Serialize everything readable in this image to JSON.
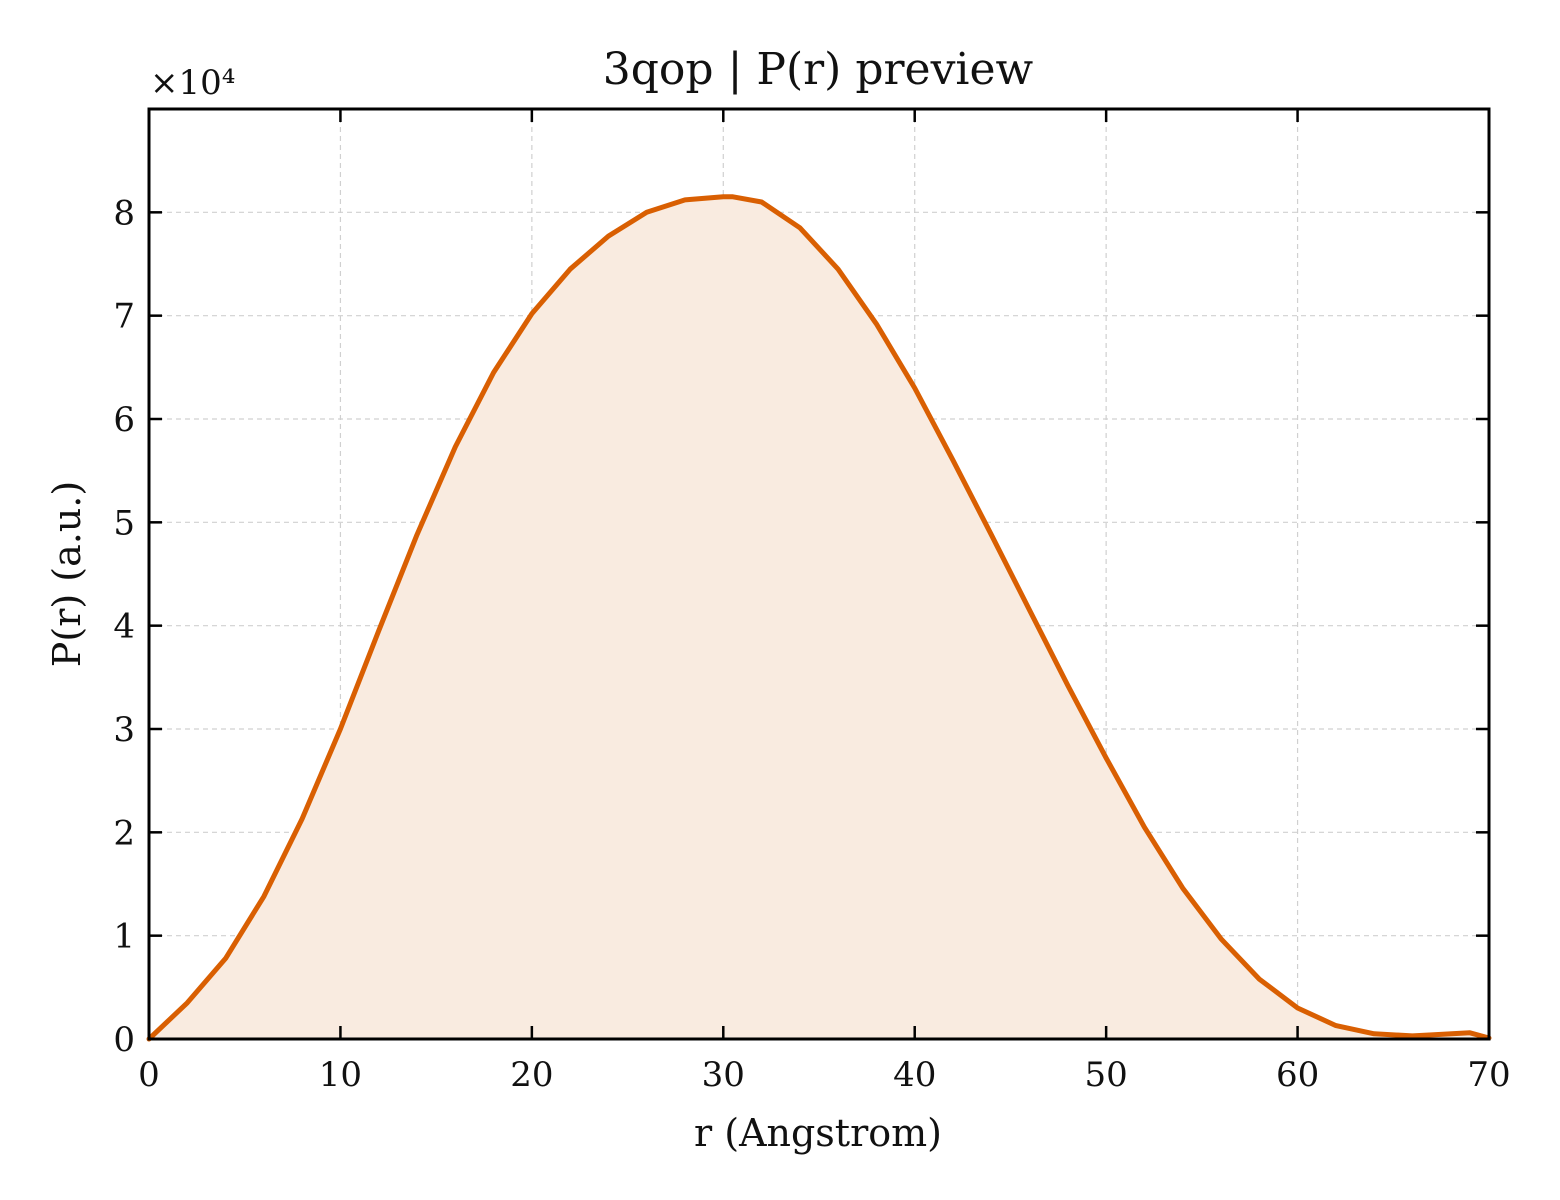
{
  "chart_data": {
    "type": "area",
    "title": "3qop | P(r) preview",
    "xlabel": "r (Angstrom)",
    "ylabel": "P(r) (a.u.)",
    "y_scale_label": "×10⁴",
    "y_multiplier": 10000,
    "xlim": [
      0,
      70
    ],
    "ylim": [
      0,
      9
    ],
    "xticks": [
      0,
      10,
      20,
      30,
      40,
      50,
      60,
      70
    ],
    "xtick_labels": [
      "0",
      "10",
      "20",
      "30",
      "40",
      "50",
      "60",
      "70"
    ],
    "yticks": [
      0,
      1,
      2,
      3,
      4,
      5,
      6,
      7,
      8
    ],
    "ytick_labels": [
      "0",
      "1",
      "2",
      "3",
      "4",
      "5",
      "6",
      "7",
      "8"
    ],
    "grid": true,
    "series": [
      {
        "color": "#d95f02",
        "fill_color": "#f9ebe0",
        "x": [
          0,
          2,
          4,
          6,
          8,
          10,
          12,
          14,
          16,
          18,
          20,
          22,
          24,
          26,
          28,
          30,
          30.5,
          32,
          34,
          36,
          38,
          40,
          42,
          44,
          46,
          48,
          50,
          52,
          54,
          56,
          58,
          60,
          62,
          64,
          66,
          67,
          69,
          70
        ],
        "y": [
          0,
          0.35,
          0.78,
          1.38,
          2.13,
          3.0,
          3.95,
          4.88,
          5.73,
          6.45,
          7.02,
          7.45,
          7.77,
          8.0,
          8.12,
          8.15,
          8.15,
          8.1,
          7.85,
          7.45,
          6.92,
          6.3,
          5.6,
          4.88,
          4.15,
          3.42,
          2.72,
          2.05,
          1.46,
          0.97,
          0.58,
          0.3,
          0.13,
          0.05,
          0.03,
          0.04,
          0.06,
          0.01
        ]
      }
    ]
  }
}
